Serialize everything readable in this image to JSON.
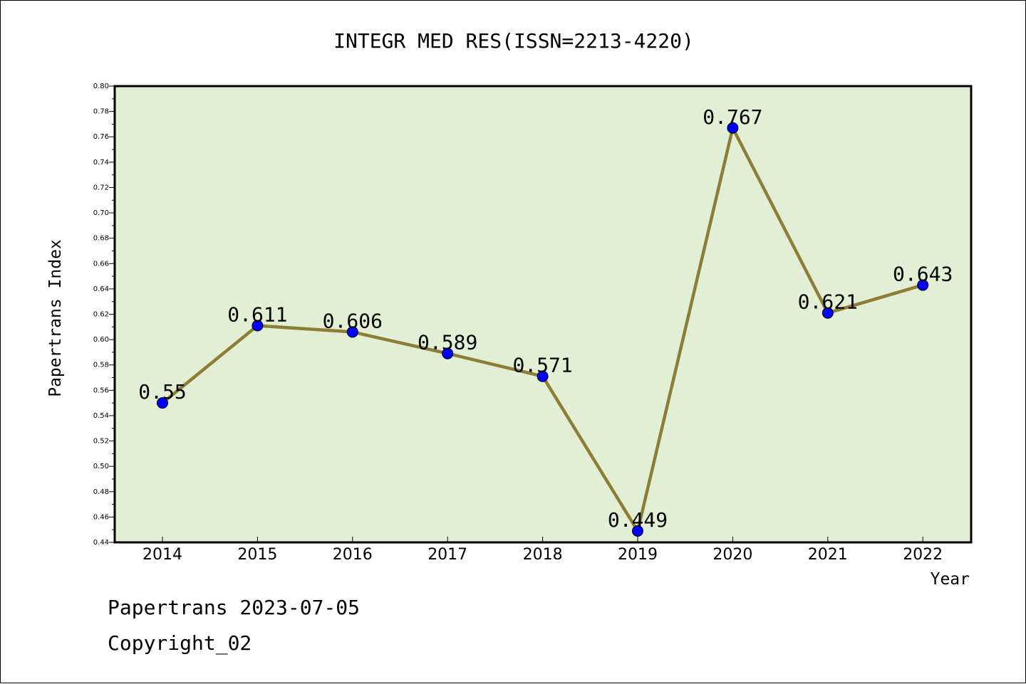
{
  "chart_data": {
    "type": "line",
    "title": "INTEGR MED RES(ISSN=2213-4220)",
    "xlabel": "Year",
    "ylabel": "Papertrans Index",
    "categories": [
      "2014",
      "2015",
      "2016",
      "2017",
      "2018",
      "2019",
      "2020",
      "2021",
      "2022"
    ],
    "values": [
      0.55,
      0.611,
      0.606,
      0.589,
      0.571,
      0.449,
      0.767,
      0.621,
      0.643
    ],
    "value_labels": [
      "0.55",
      "0.611",
      "0.606",
      "0.589",
      "0.571",
      "0.449",
      "0.767",
      "0.621",
      "0.643"
    ],
    "ylim": [
      0.44,
      0.8
    ],
    "yticks": [
      "0.44",
      "0.46",
      "0.48",
      "0.50",
      "0.52",
      "0.54",
      "0.56",
      "0.58",
      "0.60",
      "0.62",
      "0.64",
      "0.66",
      "0.68",
      "0.70",
      "0.72",
      "0.74",
      "0.76",
      "0.78",
      "0.80"
    ],
    "grid": false,
    "colors": {
      "plot_background": "#e2efd4",
      "line": "#8c7e36",
      "marker": "#0000ff"
    }
  },
  "footer": {
    "date_line": "Papertrans 2023-07-05",
    "copyright": "Copyright_02"
  }
}
